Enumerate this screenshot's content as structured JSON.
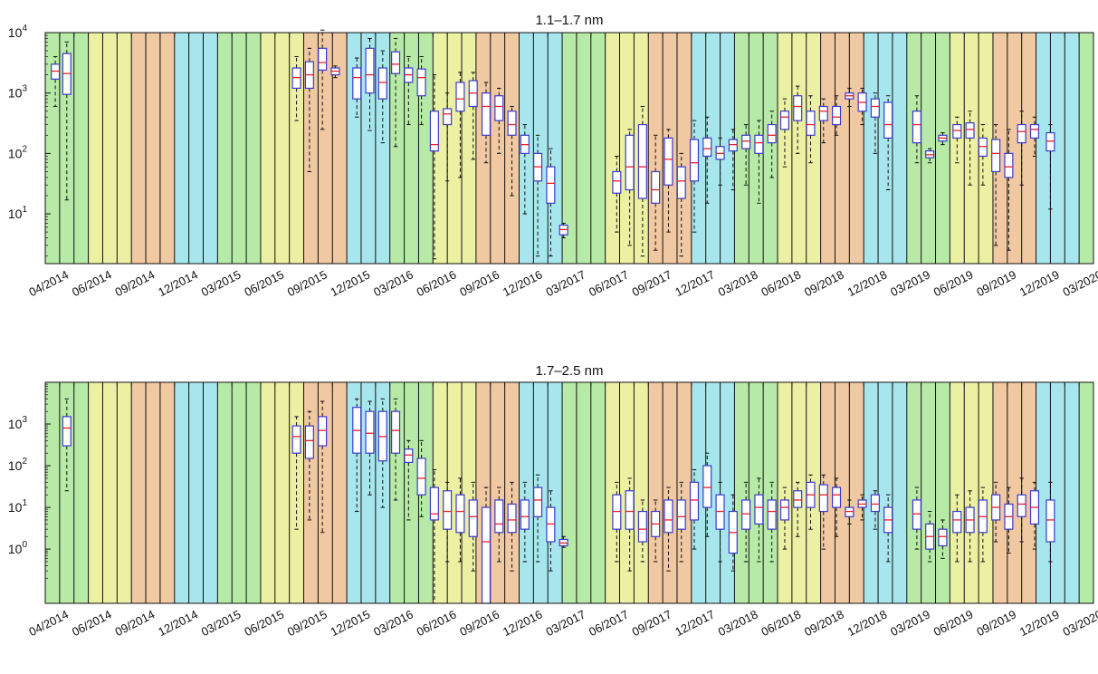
{
  "season_colors": {
    "green": "#b6eaa6",
    "yellow": "#ecf0a2",
    "orange": "#f0c8a2",
    "blue": "#a8e6ee"
  },
  "box_color": "#3b3bd0",
  "median_color": "#e8202c",
  "whisker_color": "#111111",
  "season_pattern": [
    "green",
    "yellow",
    "orange",
    "blue"
  ],
  "chart_data": [
    {
      "type": "box",
      "title": "1.1–1.7 nm",
      "yscale": "log",
      "ylim": [
        1.5,
        10000
      ],
      "yticks": [
        {
          "value": 10,
          "label": "10",
          "exp": "1"
        },
        {
          "value": 100,
          "label": "10",
          "exp": "2"
        },
        {
          "value": 1000,
          "label": "10",
          "exp": "3"
        },
        {
          "value": 10000,
          "label": "10",
          "exp": "4"
        }
      ],
      "xticks": [
        "04/2014",
        "06/2014",
        "09/2014",
        "12/2014",
        "03/2015",
        "06/2015",
        "09/2015",
        "12/2015",
        "03/2016",
        "06/2016",
        "09/2016",
        "12/2016",
        "03/2017",
        "06/2017",
        "09/2017",
        "12/2017",
        "03/2018",
        "06/2018",
        "09/2018",
        "12/2018",
        "03/2019",
        "06/2019",
        "09/2019",
        "12/2019",
        "03/2020"
      ],
      "months": 73,
      "boxes": [
        {
          "m": 0.2,
          "lo": 600,
          "q1": 1700,
          "med": 2300,
          "q3": 3000,
          "hi": 4000
        },
        {
          "m": 1.0,
          "lo": 17,
          "q1": 950,
          "med": 2100,
          "q3": 4500,
          "hi": 7000
        },
        {
          "m": 17.0,
          "lo": 350,
          "q1": 1200,
          "med": 1800,
          "q3": 2600,
          "hi": 4000
        },
        {
          "m": 17.9,
          "lo": 50,
          "q1": 1200,
          "med": 2000,
          "q3": 3300,
          "hi": 5500
        },
        {
          "m": 18.8,
          "lo": 250,
          "q1": 2400,
          "med": 3200,
          "q3": 5500,
          "hi": 11000
        },
        {
          "m": 19.7,
          "lo": 1800,
          "q1": 2000,
          "med": 2300,
          "q3": 2600,
          "hi": 2800
        },
        {
          "m": 21.2,
          "lo": 400,
          "q1": 800,
          "med": 1800,
          "q3": 2600,
          "hi": 3800
        },
        {
          "m": 22.1,
          "lo": 240,
          "q1": 1000,
          "med": 2000,
          "q3": 5500,
          "hi": 8000
        },
        {
          "m": 23.0,
          "lo": 150,
          "q1": 800,
          "med": 1500,
          "q3": 2600,
          "hi": 5000
        },
        {
          "m": 23.9,
          "lo": 130,
          "q1": 2100,
          "med": 3000,
          "q3": 4800,
          "hi": 8000
        },
        {
          "m": 24.8,
          "lo": 300,
          "q1": 1500,
          "med": 2000,
          "q3": 2600,
          "hi": 4000
        },
        {
          "m": 25.7,
          "lo": 300,
          "q1": 900,
          "med": 1800,
          "q3": 2500,
          "hi": 4000
        },
        {
          "m": 26.6,
          "lo": 1.8,
          "q1": 110,
          "med": 140,
          "q3": 500,
          "hi": 2000
        },
        {
          "m": 27.5,
          "lo": 35,
          "q1": 300,
          "med": 450,
          "q3": 550,
          "hi": 1000
        },
        {
          "m": 28.4,
          "lo": 40,
          "q1": 500,
          "med": 800,
          "q3": 1500,
          "hi": 2200
        },
        {
          "m": 29.3,
          "lo": 80,
          "q1": 600,
          "med": 1000,
          "q3": 1600,
          "hi": 2200
        },
        {
          "m": 30.2,
          "lo": 70,
          "q1": 200,
          "med": 600,
          "q3": 1000,
          "hi": 1500
        },
        {
          "m": 31.1,
          "lo": 100,
          "q1": 350,
          "med": 600,
          "q3": 900,
          "hi": 1200
        },
        {
          "m": 32.0,
          "lo": 20,
          "q1": 200,
          "med": 300,
          "q3": 500,
          "hi": 600
        },
        {
          "m": 32.9,
          "lo": 10,
          "q1": 100,
          "med": 140,
          "q3": 200,
          "hi": 300
        },
        {
          "m": 33.8,
          "lo": 2,
          "q1": 35,
          "med": 60,
          "q3": 100,
          "hi": 200
        },
        {
          "m": 34.7,
          "lo": 2,
          "q1": 15,
          "med": 32,
          "q3": 60,
          "hi": 120
        },
        {
          "m": 35.6,
          "lo": 4,
          "q1": 4.5,
          "med": 5.5,
          "q3": 6.5,
          "hi": 7
        },
        {
          "m": 39.3,
          "lo": 5,
          "q1": 22,
          "med": 35,
          "q3": 50,
          "hi": 90
        },
        {
          "m": 40.2,
          "lo": 3,
          "q1": 25,
          "med": 60,
          "q3": 200,
          "hi": 250
        },
        {
          "m": 41.1,
          "lo": 2,
          "q1": 18,
          "med": 60,
          "q3": 300,
          "hi": 600
        },
        {
          "m": 42.0,
          "lo": 2.5,
          "q1": 15,
          "med": 25,
          "q3": 50,
          "hi": 200
        },
        {
          "m": 42.9,
          "lo": 5,
          "q1": 30,
          "med": 80,
          "q3": 180,
          "hi": 250
        },
        {
          "m": 43.8,
          "lo": 2,
          "q1": 18,
          "med": 35,
          "q3": 60,
          "hi": 100
        },
        {
          "m": 44.7,
          "lo": 5,
          "q1": 35,
          "med": 70,
          "q3": 170,
          "hi": 350
        },
        {
          "m": 45.6,
          "lo": 15,
          "q1": 90,
          "med": 120,
          "q3": 180,
          "hi": 400
        },
        {
          "m": 46.5,
          "lo": 30,
          "q1": 80,
          "med": 100,
          "q3": 130,
          "hi": 180
        },
        {
          "m": 47.4,
          "lo": 25,
          "q1": 110,
          "med": 140,
          "q3": 170,
          "hi": 250
        },
        {
          "m": 48.3,
          "lo": 30,
          "q1": 120,
          "med": 160,
          "q3": 200,
          "hi": 300
        },
        {
          "m": 49.2,
          "lo": 15,
          "q1": 100,
          "med": 150,
          "q3": 200,
          "hi": 350
        },
        {
          "m": 50.1,
          "lo": 40,
          "q1": 150,
          "med": 200,
          "q3": 300,
          "hi": 500
        },
        {
          "m": 51.0,
          "lo": 60,
          "q1": 250,
          "med": 400,
          "q3": 500,
          "hi": 800
        },
        {
          "m": 51.9,
          "lo": 100,
          "q1": 350,
          "med": 600,
          "q3": 900,
          "hi": 1300
        },
        {
          "m": 52.8,
          "lo": 70,
          "q1": 200,
          "med": 300,
          "q3": 500,
          "hi": 900
        },
        {
          "m": 53.7,
          "lo": 150,
          "q1": 350,
          "med": 500,
          "q3": 600,
          "hi": 800
        },
        {
          "m": 54.6,
          "lo": 200,
          "q1": 300,
          "med": 400,
          "q3": 600,
          "hi": 900
        },
        {
          "m": 55.5,
          "lo": 600,
          "q1": 800,
          "med": 900,
          "q3": 1000,
          "hi": 1200
        },
        {
          "m": 56.4,
          "lo": 300,
          "q1": 500,
          "med": 700,
          "q3": 1000,
          "hi": 1200
        },
        {
          "m": 57.3,
          "lo": 100,
          "q1": 400,
          "med": 600,
          "q3": 800,
          "hi": 1000
        },
        {
          "m": 58.2,
          "lo": 25,
          "q1": 180,
          "med": 300,
          "q3": 700,
          "hi": 900
        },
        {
          "m": 60.2,
          "lo": 70,
          "q1": 150,
          "med": 300,
          "q3": 500,
          "hi": 900
        },
        {
          "m": 61.1,
          "lo": 70,
          "q1": 85,
          "med": 95,
          "q3": 110,
          "hi": 120
        },
        {
          "m": 62.0,
          "lo": 140,
          "q1": 160,
          "med": 180,
          "q3": 200,
          "hi": 220
        },
        {
          "m": 63.0,
          "lo": 70,
          "q1": 180,
          "med": 240,
          "q3": 300,
          "hi": 400
        },
        {
          "m": 63.9,
          "lo": 30,
          "q1": 180,
          "med": 250,
          "q3": 320,
          "hi": 500
        },
        {
          "m": 64.8,
          "lo": 30,
          "q1": 90,
          "med": 130,
          "q3": 180,
          "hi": 300
        },
        {
          "m": 65.7,
          "lo": 3,
          "q1": 50,
          "med": 100,
          "q3": 170,
          "hi": 300
        },
        {
          "m": 66.6,
          "lo": 2.5,
          "q1": 40,
          "med": 60,
          "q3": 100,
          "hi": 250
        },
        {
          "m": 67.5,
          "lo": 30,
          "q1": 150,
          "med": 230,
          "q3": 300,
          "hi": 500
        },
        {
          "m": 68.4,
          "lo": 90,
          "q1": 180,
          "med": 250,
          "q3": 300,
          "hi": 400
        },
        {
          "m": 69.5,
          "lo": 12,
          "q1": 110,
          "med": 160,
          "q3": 220,
          "hi": 300
        }
      ]
    },
    {
      "type": "box",
      "title": "1.7–2.5 nm",
      "yscale": "log",
      "ylim": [
        0.05,
        10000
      ],
      "yticks": [
        {
          "value": 1,
          "label": "10",
          "exp": "0"
        },
        {
          "value": 10,
          "label": "10",
          "exp": "1"
        },
        {
          "value": 100,
          "label": "10",
          "exp": "2"
        },
        {
          "value": 1000,
          "label": "10",
          "exp": "3"
        }
      ],
      "xticks": [
        "04/2014",
        "06/2014",
        "09/2014",
        "12/2014",
        "03/2015",
        "06/2015",
        "09/2015",
        "12/2015",
        "03/2016",
        "06/2016",
        "09/2016",
        "12/2016",
        "03/2017",
        "06/2017",
        "09/2017",
        "12/2017",
        "03/2018",
        "06/2018",
        "09/2018",
        "12/2018",
        "03/2019",
        "06/2019",
        "09/2019",
        "12/2019",
        "03/2020"
      ],
      "months": 73,
      "boxes": [
        {
          "m": 1.0,
          "lo": 25,
          "q1": 300,
          "med": 800,
          "q3": 1500,
          "hi": 4000
        },
        {
          "m": 17.0,
          "lo": 3,
          "q1": 200,
          "med": 500,
          "q3": 900,
          "hi": 1500
        },
        {
          "m": 17.9,
          "lo": 5,
          "q1": 150,
          "med": 400,
          "q3": 900,
          "hi": 2000
        },
        {
          "m": 18.8,
          "lo": 2.5,
          "q1": 300,
          "med": 700,
          "q3": 1500,
          "hi": 3500
        },
        {
          "m": 21.2,
          "lo": 8,
          "q1": 200,
          "med": 700,
          "q3": 2500,
          "hi": 4000
        },
        {
          "m": 22.1,
          "lo": 20,
          "q1": 200,
          "med": 600,
          "q3": 2000,
          "hi": 3500
        },
        {
          "m": 23.0,
          "lo": 10,
          "q1": 130,
          "med": 500,
          "q3": 2000,
          "hi": 4000
        },
        {
          "m": 23.9,
          "lo": 15,
          "q1": 200,
          "med": 700,
          "q3": 2000,
          "hi": 4000
        },
        {
          "m": 24.8,
          "lo": 5,
          "q1": 120,
          "med": 180,
          "q3": 250,
          "hi": 400
        },
        {
          "m": 25.7,
          "lo": 6,
          "q1": 20,
          "med": 50,
          "q3": 150,
          "hi": 400
        },
        {
          "m": 26.6,
          "lo": 0.05,
          "q1": 5,
          "med": 7,
          "q3": 30,
          "hi": 80
        },
        {
          "m": 27.5,
          "lo": 0.5,
          "q1": 3,
          "med": 8,
          "q3": 25,
          "hi": 40
        },
        {
          "m": 28.4,
          "lo": 0.5,
          "q1": 2.5,
          "med": 8,
          "q3": 20,
          "hi": 50
        },
        {
          "m": 29.3,
          "lo": 0.3,
          "q1": 2,
          "med": 6,
          "q3": 15,
          "hi": 40
        },
        {
          "m": 30.2,
          "lo": 0.05,
          "q1": 0.05,
          "med": 1.5,
          "q3": 10,
          "hi": 30
        },
        {
          "m": 31.1,
          "lo": 0.5,
          "q1": 2.5,
          "med": 4,
          "q3": 15,
          "hi": 30
        },
        {
          "m": 32.0,
          "lo": 0.3,
          "q1": 2.5,
          "med": 5,
          "q3": 12,
          "hi": 40
        },
        {
          "m": 32.9,
          "lo": 0.5,
          "q1": 3,
          "med": 6,
          "q3": 15,
          "hi": 40
        },
        {
          "m": 33.8,
          "lo": 0.5,
          "q1": 6,
          "med": 15,
          "q3": 30,
          "hi": 60
        },
        {
          "m": 34.7,
          "lo": 0.3,
          "q1": 1.5,
          "med": 4,
          "q3": 10,
          "hi": 25
        },
        {
          "m": 35.6,
          "lo": 1.1,
          "q1": 1.2,
          "med": 1.4,
          "q3": 1.7,
          "hi": 2
        },
        {
          "m": 39.3,
          "lo": 0.5,
          "q1": 3,
          "med": 8,
          "q3": 20,
          "hi": 40
        },
        {
          "m": 40.2,
          "lo": 0.3,
          "q1": 3,
          "med": 8,
          "q3": 25,
          "hi": 50
        },
        {
          "m": 41.1,
          "lo": 0.5,
          "q1": 1.5,
          "med": 3,
          "q3": 8,
          "hi": 15
        },
        {
          "m": 42.0,
          "lo": 0.5,
          "q1": 2,
          "med": 4,
          "q3": 8,
          "hi": 15
        },
        {
          "m": 42.9,
          "lo": 0.3,
          "q1": 2.5,
          "med": 5,
          "q3": 15,
          "hi": 30
        },
        {
          "m": 43.8,
          "lo": 0.5,
          "q1": 3,
          "med": 6,
          "q3": 15,
          "hi": 40
        },
        {
          "m": 44.7,
          "lo": 1,
          "q1": 5,
          "med": 15,
          "q3": 40,
          "hi": 80
        },
        {
          "m": 45.6,
          "lo": 2,
          "q1": 10,
          "med": 30,
          "q3": 100,
          "hi": 200
        },
        {
          "m": 46.5,
          "lo": 0.5,
          "q1": 3,
          "med": 8,
          "q3": 20,
          "hi": 40
        },
        {
          "m": 47.4,
          "lo": 0.3,
          "q1": 0.8,
          "med": 2.5,
          "q3": 8,
          "hi": 20
        },
        {
          "m": 48.3,
          "lo": 0.5,
          "q1": 3,
          "med": 7,
          "q3": 15,
          "hi": 40
        },
        {
          "m": 49.2,
          "lo": 0.5,
          "q1": 4,
          "med": 10,
          "q3": 20,
          "hi": 50
        },
        {
          "m": 50.1,
          "lo": 0.5,
          "q1": 3,
          "med": 8,
          "q3": 15,
          "hi": 40
        },
        {
          "m": 51.0,
          "lo": 1,
          "q1": 5,
          "med": 10,
          "q3": 15,
          "hi": 30
        },
        {
          "m": 51.9,
          "lo": 2,
          "q1": 10,
          "med": 15,
          "q3": 25,
          "hi": 40
        },
        {
          "m": 52.8,
          "lo": 3,
          "q1": 10,
          "med": 20,
          "q3": 40,
          "hi": 60
        },
        {
          "m": 53.7,
          "lo": 1,
          "q1": 8,
          "med": 20,
          "q3": 35,
          "hi": 60
        },
        {
          "m": 54.6,
          "lo": 2,
          "q1": 10,
          "med": 20,
          "q3": 30,
          "hi": 50
        },
        {
          "m": 55.5,
          "lo": 4,
          "q1": 6,
          "med": 8,
          "q3": 10,
          "hi": 15
        },
        {
          "m": 56.4,
          "lo": 5,
          "q1": 10,
          "med": 12,
          "q3": 15,
          "hi": 20
        },
        {
          "m": 57.3,
          "lo": 3,
          "q1": 8,
          "med": 12,
          "q3": 20,
          "hi": 25
        },
        {
          "m": 58.2,
          "lo": 0.5,
          "q1": 2.5,
          "med": 5,
          "q3": 10,
          "hi": 20
        },
        {
          "m": 60.2,
          "lo": 1,
          "q1": 3,
          "med": 7,
          "q3": 15,
          "hi": 30
        },
        {
          "m": 61.1,
          "lo": 0.5,
          "q1": 1,
          "med": 2,
          "q3": 4,
          "hi": 8
        },
        {
          "m": 62.0,
          "lo": 0.6,
          "q1": 1.2,
          "med": 2,
          "q3": 3,
          "hi": 5
        },
        {
          "m": 63.0,
          "lo": 0.5,
          "q1": 2.5,
          "med": 5,
          "q3": 8,
          "hi": 20
        },
        {
          "m": 63.9,
          "lo": 0.5,
          "q1": 2.5,
          "med": 5,
          "q3": 10,
          "hi": 25
        },
        {
          "m": 64.8,
          "lo": 0.5,
          "q1": 2.5,
          "med": 6,
          "q3": 15,
          "hi": 30
        },
        {
          "m": 65.7,
          "lo": 1.5,
          "q1": 5,
          "med": 10,
          "q3": 20,
          "hi": 40
        },
        {
          "m": 66.6,
          "lo": 0.8,
          "q1": 3,
          "med": 6,
          "q3": 12,
          "hi": 30
        },
        {
          "m": 67.5,
          "lo": 1.5,
          "q1": 6,
          "med": 12,
          "q3": 20,
          "hi": 50
        },
        {
          "m": 68.4,
          "lo": 1,
          "q1": 4,
          "med": 10,
          "q3": 25,
          "hi": 40
        },
        {
          "m": 69.5,
          "lo": 0.5,
          "q1": 1.5,
          "med": 5,
          "q3": 15,
          "hi": 40
        }
      ]
    }
  ]
}
